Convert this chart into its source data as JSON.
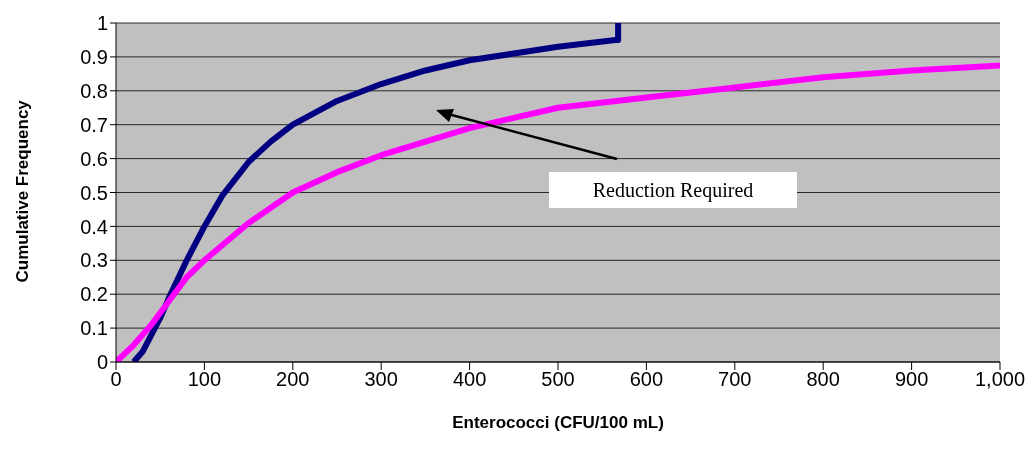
{
  "chart_data": {
    "type": "line",
    "xlabel": "Enterococci (CFU/100 mL)",
    "ylabel": "Cumulative Frequency",
    "annotations": [
      "Reduction Required"
    ],
    "series": [
      {
        "color": "#000080",
        "x": [
          20,
          30,
          40,
          50,
          60,
          80,
          100,
          120,
          150,
          175,
          200,
          250,
          300,
          350,
          400,
          450,
          500,
          565,
          568,
          568
        ],
        "values": [
          0,
          0.03,
          0.08,
          0.13,
          0.19,
          0.3,
          0.4,
          0.49,
          0.59,
          0.65,
          0.7,
          0.77,
          0.82,
          0.86,
          0.89,
          0.91,
          0.93,
          0.95,
          0.95,
          1
        ]
      },
      {
        "color": "#ff00ff",
        "x": [
          0,
          20,
          40,
          60,
          80,
          100,
          150,
          200,
          250,
          300,
          350,
          400,
          450,
          500,
          600,
          700,
          800,
          900,
          1000
        ],
        "values": [
          0,
          0.05,
          0.11,
          0.18,
          0.25,
          0.3,
          0.41,
          0.5,
          0.56,
          0.61,
          0.65,
          0.69,
          0.72,
          0.75,
          0.78,
          0.81,
          0.84,
          0.86,
          0.875
        ]
      }
    ],
    "xlim": [
      0,
      1000
    ],
    "xticks": [
      0,
      100,
      200,
      300,
      400,
      500,
      600,
      700,
      800,
      900,
      {
        "value": 1000,
        "label": "1,000"
      }
    ],
    "ylim": [
      0,
      1
    ],
    "yticks": [
      0,
      0.1,
      0.2,
      0.3,
      0.4,
      0.5,
      0.6,
      0.7,
      0.8,
      0.9,
      1
    ],
    "grid": "y",
    "marker": "none",
    "line_style": "solid"
  }
}
